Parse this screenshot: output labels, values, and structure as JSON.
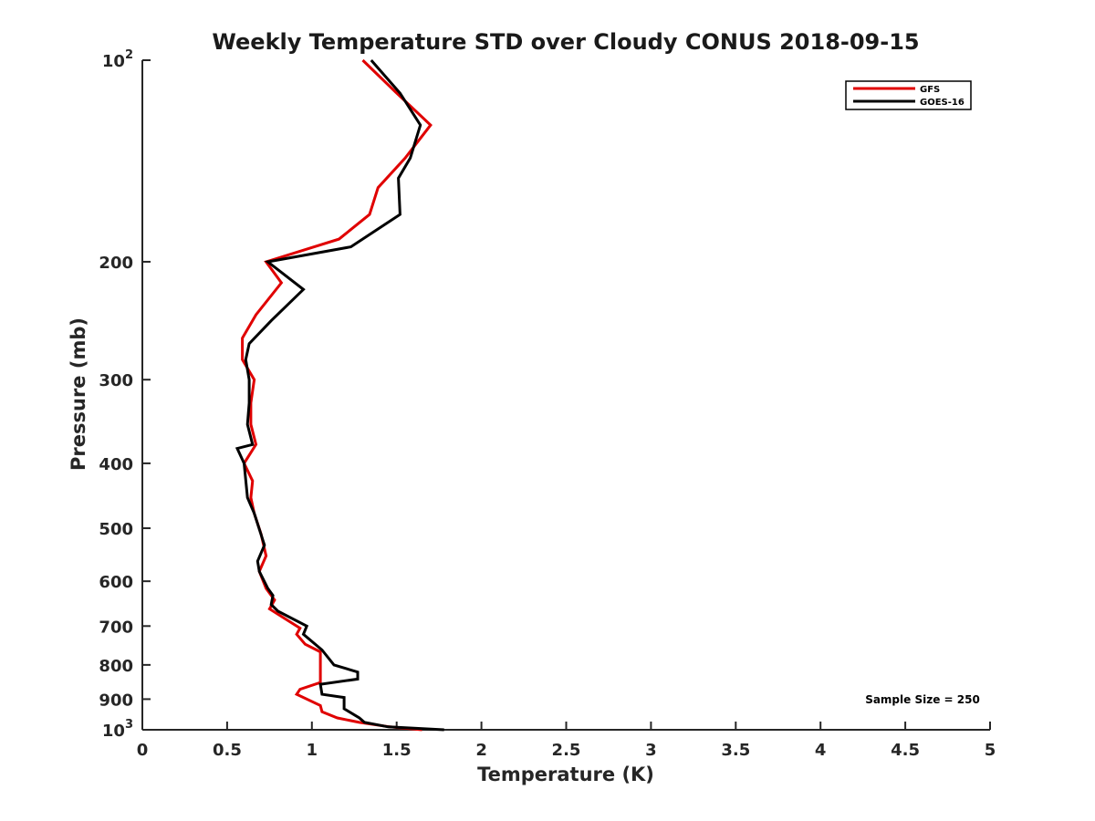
{
  "chart_data": {
    "type": "line",
    "title": "Weekly Temperature STD over Cloudy CONUS 2018-09-15",
    "xlabel": "Temperature (K)",
    "ylabel": "Pressure (mb)",
    "xlim": [
      0,
      5
    ],
    "ylim": [
      1000,
      100
    ],
    "y_scale": "log",
    "y_reversed": true,
    "grid": false,
    "legend_position": "top-right",
    "x_ticks": [
      0,
      0.5,
      1,
      1.5,
      2,
      2.5,
      3,
      3.5,
      4,
      4.5,
      5
    ],
    "x_tick_labels": [
      "0",
      "0.5",
      "1",
      "1.5",
      "2",
      "2.5",
      "3",
      "3.5",
      "4",
      "4.5",
      "5"
    ],
    "y_ticks": [
      100,
      200,
      300,
      400,
      500,
      600,
      700,
      800,
      900,
      1000
    ],
    "y_tick_labels": [
      {
        "base": "10",
        "exp": "2"
      },
      {
        "base": "200",
        "exp": ""
      },
      {
        "base": "300",
        "exp": ""
      },
      {
        "base": "400",
        "exp": ""
      },
      {
        "base": "500",
        "exp": ""
      },
      {
        "base": "600",
        "exp": ""
      },
      {
        "base": "700",
        "exp": ""
      },
      {
        "base": "800",
        "exp": ""
      },
      {
        "base": "900",
        "exp": ""
      },
      {
        "base": "10",
        "exp": "3"
      }
    ],
    "annotation": "Sample Size = 250",
    "series": [
      {
        "name": "GFS",
        "color": "#e00000",
        "points": [
          [
            1.3,
            100
          ],
          [
            1.5,
            112
          ],
          [
            1.7,
            125
          ],
          [
            1.55,
            140
          ],
          [
            1.39,
            155
          ],
          [
            1.34,
            170
          ],
          [
            1.16,
            185
          ],
          [
            0.73,
            200
          ],
          [
            0.82,
            215
          ],
          [
            0.67,
            240
          ],
          [
            0.59,
            260
          ],
          [
            0.59,
            280
          ],
          [
            0.66,
            300
          ],
          [
            0.64,
            325
          ],
          [
            0.64,
            350
          ],
          [
            0.67,
            375
          ],
          [
            0.6,
            400
          ],
          [
            0.65,
            425
          ],
          [
            0.64,
            450
          ],
          [
            0.66,
            475
          ],
          [
            0.7,
            510
          ],
          [
            0.73,
            550
          ],
          [
            0.69,
            580
          ],
          [
            0.73,
            615
          ],
          [
            0.78,
            640
          ],
          [
            0.75,
            660
          ],
          [
            0.93,
            705
          ],
          [
            0.91,
            720
          ],
          [
            0.96,
            745
          ],
          [
            1.05,
            765
          ],
          [
            1.05,
            850
          ],
          [
            0.93,
            870
          ],
          [
            0.91,
            885
          ],
          [
            1.05,
            920
          ],
          [
            1.06,
            940
          ],
          [
            1.15,
            960
          ],
          [
            1.28,
            975
          ],
          [
            1.46,
            990
          ],
          [
            1.65,
            1000
          ]
        ]
      },
      {
        "name": "GOES-16",
        "color": "#000000",
        "points": [
          [
            1.35,
            100
          ],
          [
            1.52,
            112
          ],
          [
            1.64,
            125
          ],
          [
            1.58,
            140
          ],
          [
            1.51,
            150
          ],
          [
            1.52,
            170
          ],
          [
            1.23,
            190
          ],
          [
            0.74,
            200
          ],
          [
            0.95,
            220
          ],
          [
            0.76,
            245
          ],
          [
            0.63,
            265
          ],
          [
            0.61,
            280
          ],
          [
            0.63,
            300
          ],
          [
            0.63,
            325
          ],
          [
            0.62,
            350
          ],
          [
            0.65,
            375
          ],
          [
            0.56,
            380
          ],
          [
            0.6,
            400
          ],
          [
            0.62,
            450
          ],
          [
            0.66,
            475
          ],
          [
            0.72,
            530
          ],
          [
            0.68,
            560
          ],
          [
            0.69,
            580
          ],
          [
            0.74,
            615
          ],
          [
            0.77,
            630
          ],
          [
            0.76,
            650
          ],
          [
            0.8,
            665
          ],
          [
            0.97,
            700
          ],
          [
            0.95,
            720
          ],
          [
            1.06,
            760
          ],
          [
            1.13,
            800
          ],
          [
            1.27,
            820
          ],
          [
            1.27,
            840
          ],
          [
            1.05,
            855
          ],
          [
            1.06,
            885
          ],
          [
            1.19,
            895
          ],
          [
            1.19,
            930
          ],
          [
            1.28,
            960
          ],
          [
            1.31,
            975
          ],
          [
            1.45,
            990
          ],
          [
            1.78,
            1000
          ]
        ]
      }
    ]
  }
}
